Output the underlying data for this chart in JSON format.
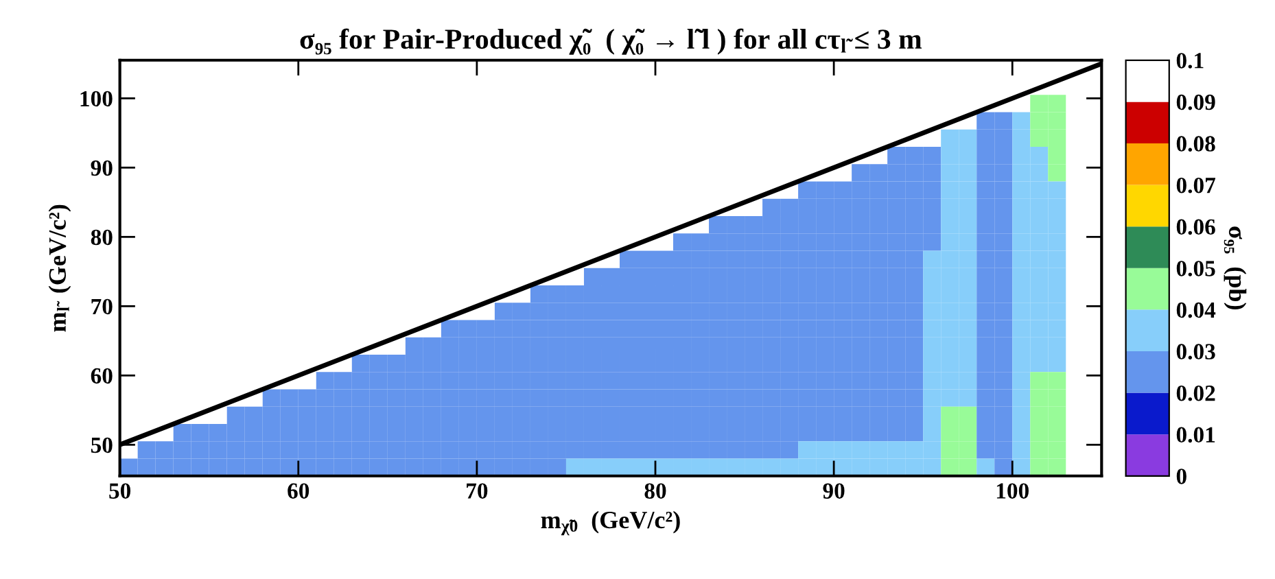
{
  "chart_data": {
    "type": "heatmap",
    "title": "σ₉₅ for Pair-Produced χ̃₀  ( χ̃₀ → l̃ l ) for all cτ$_{l̃}$ ≤ 3 m",
    "xlabel": "m$_{χ̃0}$  (GeV/c²)",
    "ylabel": "m$_{l̃}$  (GeV/c²)",
    "clabel": "σ₉₅  (pb)",
    "x": [
      50.5,
      51.5,
      52.5,
      53.5,
      54.5,
      55.5,
      56.5,
      57.5,
      58.5,
      59.5,
      60.5,
      61.5,
      62.5,
      63.5,
      64.5,
      65.5,
      66.5,
      67.5,
      68.5,
      69.5,
      70.5,
      71.5,
      72.5,
      73.5,
      74.5,
      75.5,
      76.5,
      77.5,
      78.5,
      79.5,
      80.5,
      81.5,
      82.5,
      83.5,
      84.5,
      85.5,
      86.5,
      87.5,
      88.5,
      89.5,
      90.5,
      91.5,
      92.5,
      93.5,
      94.5,
      95.5,
      96.5,
      97.5,
      98.5,
      99.5,
      100.5,
      101.5,
      102.5,
      103.5,
      104.5
    ],
    "y": [
      99.25,
      96.75,
      94.25,
      91.75,
      89.25,
      86.75,
      84.25,
      81.75,
      79.25,
      76.75,
      74.25,
      71.75,
      69.25,
      66.75,
      64.25,
      61.75,
      59.25,
      56.75,
      54.25,
      51.75,
      49.25,
      46.75
    ],
    "xlim": [
      50,
      105
    ],
    "ylim": [
      45.5,
      105.5
    ],
    "xticks": [
      50,
      60,
      70,
      80,
      90,
      100
    ],
    "yticks": [
      50,
      60,
      70,
      80,
      90,
      100
    ],
    "clim": [
      0,
      0.1
    ],
    "cticks": [
      0,
      0.01,
      0.02,
      0.03,
      0.04,
      0.05,
      0.06,
      0.07,
      0.08,
      0.09,
      0.1
    ],
    "colors": [
      "#8a3be0",
      "#0a1acc",
      "#6495ed",
      "#87cefa",
      "#98fb98",
      "#2e8b57",
      "#ffd700",
      "#ffa500",
      "#cc0000",
      "#ffffff"
    ],
    "cells": [
      [
        null,
        null,
        null,
        null,
        null,
        null,
        null,
        null,
        null,
        null,
        null,
        null,
        null,
        null,
        null,
        null,
        null,
        null,
        null,
        null,
        null,
        null,
        null,
        null,
        null,
        null,
        null,
        null,
        null,
        null,
        null,
        null,
        null,
        null,
        null,
        null,
        null,
        null,
        null,
        null,
        null,
        null,
        null,
        null,
        null,
        null,
        null,
        null,
        null,
        null,
        null,
        0.045,
        0.045,
        null,
        null
      ],
      [
        null,
        null,
        null,
        null,
        null,
        null,
        null,
        null,
        null,
        null,
        null,
        null,
        null,
        null,
        null,
        null,
        null,
        null,
        null,
        null,
        null,
        null,
        null,
        null,
        null,
        null,
        null,
        null,
        null,
        null,
        null,
        null,
        null,
        null,
        null,
        null,
        null,
        null,
        null,
        null,
        null,
        null,
        null,
        null,
        null,
        null,
        null,
        null,
        0.025,
        0.025,
        0.035,
        0.045,
        0.045,
        null,
        null
      ],
      [
        null,
        null,
        null,
        null,
        null,
        null,
        null,
        null,
        null,
        null,
        null,
        null,
        null,
        null,
        null,
        null,
        null,
        null,
        null,
        null,
        null,
        null,
        null,
        null,
        null,
        null,
        null,
        null,
        null,
        null,
        null,
        null,
        null,
        null,
        null,
        null,
        null,
        null,
        null,
        null,
        null,
        null,
        null,
        null,
        null,
        null,
        0.035,
        0.035,
        0.025,
        0.025,
        0.035,
        0.045,
        0.045,
        null,
        null
      ],
      [
        null,
        null,
        null,
        null,
        null,
        null,
        null,
        null,
        null,
        null,
        null,
        null,
        null,
        null,
        null,
        null,
        null,
        null,
        null,
        null,
        null,
        null,
        null,
        null,
        null,
        null,
        null,
        null,
        null,
        null,
        null,
        null,
        null,
        null,
        null,
        null,
        null,
        null,
        null,
        null,
        null,
        null,
        null,
        0.025,
        0.025,
        0.025,
        0.035,
        0.035,
        0.025,
        0.025,
        0.035,
        0.035,
        0.045,
        null,
        null
      ],
      [
        null,
        null,
        null,
        null,
        null,
        null,
        null,
        null,
        null,
        null,
        null,
        null,
        null,
        null,
        null,
        null,
        null,
        null,
        null,
        null,
        null,
        null,
        null,
        null,
        null,
        null,
        null,
        null,
        null,
        null,
        null,
        null,
        null,
        null,
        null,
        null,
        null,
        null,
        null,
        null,
        null,
        0.025,
        0.025,
        0.025,
        0.025,
        0.025,
        0.035,
        0.035,
        0.025,
        0.025,
        0.035,
        0.035,
        0.045,
        null,
        null
      ],
      [
        null,
        null,
        null,
        null,
        null,
        null,
        null,
        null,
        null,
        null,
        null,
        null,
        null,
        null,
        null,
        null,
        null,
        null,
        null,
        null,
        null,
        null,
        null,
        null,
        null,
        null,
        null,
        null,
        null,
        null,
        null,
        null,
        null,
        null,
        null,
        null,
        null,
        null,
        0.025,
        0.025,
        0.025,
        0.025,
        0.025,
        0.025,
        0.025,
        0.025,
        0.035,
        0.035,
        0.025,
        0.025,
        0.035,
        0.035,
        0.035,
        null,
        null
      ],
      [
        null,
        null,
        null,
        null,
        null,
        null,
        null,
        null,
        null,
        null,
        null,
        null,
        null,
        null,
        null,
        null,
        null,
        null,
        null,
        null,
        null,
        null,
        null,
        null,
        null,
        null,
        null,
        null,
        null,
        null,
        null,
        null,
        null,
        null,
        null,
        null,
        0.025,
        0.025,
        0.025,
        0.025,
        0.025,
        0.025,
        0.025,
        0.025,
        0.025,
        0.025,
        0.035,
        0.035,
        0.025,
        0.025,
        0.035,
        0.035,
        0.035,
        null,
        null
      ],
      [
        null,
        null,
        null,
        null,
        null,
        null,
        null,
        null,
        null,
        null,
        null,
        null,
        null,
        null,
        null,
        null,
        null,
        null,
        null,
        null,
        null,
        null,
        null,
        null,
        null,
        null,
        null,
        null,
        null,
        null,
        null,
        null,
        null,
        0.025,
        0.025,
        0.025,
        0.025,
        0.025,
        0.025,
        0.025,
        0.025,
        0.025,
        0.025,
        0.025,
        0.025,
        0.025,
        0.035,
        0.035,
        0.025,
        0.025,
        0.035,
        0.035,
        0.035,
        null,
        null
      ],
      [
        null,
        null,
        null,
        null,
        null,
        null,
        null,
        null,
        null,
        null,
        null,
        null,
        null,
        null,
        null,
        null,
        null,
        null,
        null,
        null,
        null,
        null,
        null,
        null,
        null,
        null,
        null,
        null,
        null,
        null,
        null,
        0.025,
        0.025,
        0.025,
        0.025,
        0.025,
        0.025,
        0.025,
        0.025,
        0.025,
        0.025,
        0.025,
        0.025,
        0.025,
        0.025,
        0.025,
        0.035,
        0.035,
        0.025,
        0.025,
        0.035,
        0.035,
        0.035,
        null,
        null
      ],
      [
        null,
        null,
        null,
        null,
        null,
        null,
        null,
        null,
        null,
        null,
        null,
        null,
        null,
        null,
        null,
        null,
        null,
        null,
        null,
        null,
        null,
        null,
        null,
        null,
        null,
        null,
        null,
        null,
        0.025,
        0.025,
        0.025,
        0.025,
        0.025,
        0.025,
        0.025,
        0.025,
        0.025,
        0.025,
        0.025,
        0.025,
        0.025,
        0.025,
        0.025,
        0.025,
        0.025,
        0.035,
        0.035,
        0.035,
        0.025,
        0.025,
        0.035,
        0.035,
        0.035,
        null,
        null
      ],
      [
        null,
        null,
        null,
        null,
        null,
        null,
        null,
        null,
        null,
        null,
        null,
        null,
        null,
        null,
        null,
        null,
        null,
        null,
        null,
        null,
        null,
        null,
        null,
        null,
        null,
        null,
        0.025,
        0.025,
        0.025,
        0.025,
        0.025,
        0.025,
        0.025,
        0.025,
        0.025,
        0.025,
        0.025,
        0.025,
        0.025,
        0.025,
        0.025,
        0.025,
        0.025,
        0.025,
        0.025,
        0.035,
        0.035,
        0.035,
        0.025,
        0.025,
        0.035,
        0.035,
        0.035,
        null,
        null
      ],
      [
        null,
        null,
        null,
        null,
        null,
        null,
        null,
        null,
        null,
        null,
        null,
        null,
        null,
        null,
        null,
        null,
        null,
        null,
        null,
        null,
        null,
        null,
        null,
        0.025,
        0.025,
        0.025,
        0.025,
        0.025,
        0.025,
        0.025,
        0.025,
        0.025,
        0.025,
        0.025,
        0.025,
        0.025,
        0.025,
        0.025,
        0.025,
        0.025,
        0.025,
        0.025,
        0.025,
        0.025,
        0.025,
        0.035,
        0.035,
        0.035,
        0.025,
        0.025,
        0.035,
        0.035,
        0.035,
        null,
        null
      ],
      [
        null,
        null,
        null,
        null,
        null,
        null,
        null,
        null,
        null,
        null,
        null,
        null,
        null,
        null,
        null,
        null,
        null,
        null,
        null,
        null,
        null,
        0.025,
        0.025,
        0.025,
        0.025,
        0.025,
        0.025,
        0.025,
        0.025,
        0.025,
        0.025,
        0.025,
        0.025,
        0.025,
        0.025,
        0.025,
        0.025,
        0.025,
        0.025,
        0.025,
        0.025,
        0.025,
        0.025,
        0.025,
        0.025,
        0.035,
        0.035,
        0.035,
        0.025,
        0.025,
        0.035,
        0.035,
        0.035,
        null,
        null
      ],
      [
        null,
        null,
        null,
        null,
        null,
        null,
        null,
        null,
        null,
        null,
        null,
        null,
        null,
        null,
        null,
        null,
        null,
        null,
        0.025,
        0.025,
        0.025,
        0.025,
        0.025,
        0.025,
        0.025,
        0.025,
        0.025,
        0.025,
        0.025,
        0.025,
        0.025,
        0.025,
        0.025,
        0.025,
        0.025,
        0.025,
        0.025,
        0.025,
        0.025,
        0.025,
        0.025,
        0.025,
        0.025,
        0.025,
        0.025,
        0.035,
        0.035,
        0.035,
        0.025,
        0.025,
        0.035,
        0.035,
        0.035,
        null,
        null
      ],
      [
        null,
        null,
        null,
        null,
        null,
        null,
        null,
        null,
        null,
        null,
        null,
        null,
        null,
        null,
        null,
        null,
        0.025,
        0.025,
        0.025,
        0.025,
        0.025,
        0.025,
        0.025,
        0.025,
        0.025,
        0.025,
        0.025,
        0.025,
        0.025,
        0.025,
        0.025,
        0.025,
        0.025,
        0.025,
        0.025,
        0.025,
        0.025,
        0.025,
        0.025,
        0.025,
        0.025,
        0.025,
        0.025,
        0.025,
        0.025,
        0.035,
        0.035,
        0.035,
        0.025,
        0.025,
        0.035,
        0.035,
        0.035,
        null,
        null
      ],
      [
        null,
        null,
        null,
        null,
        null,
        null,
        null,
        null,
        null,
        null,
        null,
        null,
        null,
        0.025,
        0.025,
        0.025,
        0.025,
        0.025,
        0.025,
        0.025,
        0.025,
        0.025,
        0.025,
        0.025,
        0.025,
        0.025,
        0.025,
        0.025,
        0.025,
        0.025,
        0.025,
        0.025,
        0.025,
        0.025,
        0.025,
        0.025,
        0.025,
        0.025,
        0.025,
        0.025,
        0.025,
        0.025,
        0.025,
        0.025,
        0.025,
        0.035,
        0.035,
        0.035,
        0.025,
        0.025,
        0.035,
        0.035,
        0.035,
        null,
        null
      ],
      [
        null,
        null,
        null,
        null,
        null,
        null,
        null,
        null,
        null,
        null,
        null,
        0.025,
        0.025,
        0.025,
        0.025,
        0.025,
        0.025,
        0.025,
        0.025,
        0.025,
        0.025,
        0.025,
        0.025,
        0.025,
        0.025,
        0.025,
        0.025,
        0.025,
        0.025,
        0.025,
        0.025,
        0.025,
        0.025,
        0.025,
        0.025,
        0.025,
        0.025,
        0.025,
        0.025,
        0.025,
        0.025,
        0.025,
        0.025,
        0.025,
        0.025,
        0.035,
        0.035,
        0.035,
        0.025,
        0.025,
        0.035,
        0.045,
        0.045,
        null,
        null
      ],
      [
        null,
        null,
        null,
        null,
        null,
        null,
        null,
        null,
        0.025,
        0.025,
        0.025,
        0.025,
        0.025,
        0.025,
        0.025,
        0.025,
        0.025,
        0.025,
        0.025,
        0.025,
        0.025,
        0.025,
        0.025,
        0.025,
        0.025,
        0.025,
        0.025,
        0.025,
        0.025,
        0.025,
        0.025,
        0.025,
        0.025,
        0.025,
        0.025,
        0.025,
        0.025,
        0.025,
        0.025,
        0.025,
        0.025,
        0.025,
        0.025,
        0.025,
        0.025,
        0.035,
        0.035,
        0.035,
        0.025,
        0.025,
        0.035,
        0.045,
        0.045,
        null,
        null
      ],
      [
        null,
        null,
        null,
        null,
        null,
        null,
        0.025,
        0.025,
        0.025,
        0.025,
        0.025,
        0.025,
        0.025,
        0.025,
        0.025,
        0.025,
        0.025,
        0.025,
        0.025,
        0.025,
        0.025,
        0.025,
        0.025,
        0.025,
        0.025,
        0.025,
        0.025,
        0.025,
        0.025,
        0.025,
        0.025,
        0.025,
        0.025,
        0.025,
        0.025,
        0.025,
        0.025,
        0.025,
        0.025,
        0.025,
        0.025,
        0.025,
        0.025,
        0.025,
        0.025,
        0.035,
        0.045,
        0.045,
        0.025,
        0.025,
        0.035,
        0.045,
        0.045,
        null,
        null
      ],
      [
        null,
        null,
        null,
        0.025,
        0.025,
        0.025,
        0.025,
        0.025,
        0.025,
        0.025,
        0.025,
        0.025,
        0.025,
        0.025,
        0.025,
        0.025,
        0.025,
        0.025,
        0.025,
        0.025,
        0.025,
        0.025,
        0.025,
        0.025,
        0.025,
        0.025,
        0.025,
        0.025,
        0.025,
        0.025,
        0.025,
        0.025,
        0.025,
        0.025,
        0.025,
        0.025,
        0.025,
        0.025,
        0.025,
        0.025,
        0.025,
        0.025,
        0.025,
        0.025,
        0.025,
        0.035,
        0.045,
        0.045,
        0.025,
        0.025,
        0.035,
        0.045,
        0.045,
        null,
        null
      ],
      [
        null,
        0.025,
        0.025,
        0.025,
        0.025,
        0.025,
        0.025,
        0.025,
        0.025,
        0.025,
        0.025,
        0.025,
        0.025,
        0.025,
        0.025,
        0.025,
        0.025,
        0.025,
        0.025,
        0.025,
        0.025,
        0.025,
        0.025,
        0.025,
        0.025,
        0.025,
        0.025,
        0.025,
        0.025,
        0.025,
        0.025,
        0.025,
        0.025,
        0.025,
        0.025,
        0.025,
        0.025,
        0.025,
        0.035,
        0.035,
        0.035,
        0.035,
        0.035,
        0.035,
        0.035,
        0.035,
        0.045,
        0.045,
        0.025,
        0.025,
        0.035,
        0.045,
        0.045,
        null,
        null
      ],
      [
        0.025,
        0.025,
        0.025,
        0.025,
        0.025,
        0.025,
        0.025,
        0.025,
        0.025,
        0.025,
        0.025,
        0.025,
        0.025,
        0.025,
        0.025,
        0.025,
        0.025,
        0.025,
        0.025,
        0.025,
        0.025,
        0.025,
        0.025,
        0.025,
        0.025,
        0.035,
        0.035,
        0.035,
        0.035,
        0.035,
        0.035,
        0.035,
        0.035,
        0.035,
        0.035,
        0.035,
        0.035,
        0.035,
        0.035,
        0.035,
        0.035,
        0.035,
        0.035,
        0.035,
        0.035,
        0.035,
        0.045,
        0.045,
        0.035,
        0.025,
        0.035,
        0.045,
        0.045,
        null,
        null
      ]
    ],
    "series": [
      {
        "type": "line",
        "color": "#000000",
        "x": [
          50,
          105
        ],
        "values": [
          50,
          105
        ]
      }
    ]
  }
}
